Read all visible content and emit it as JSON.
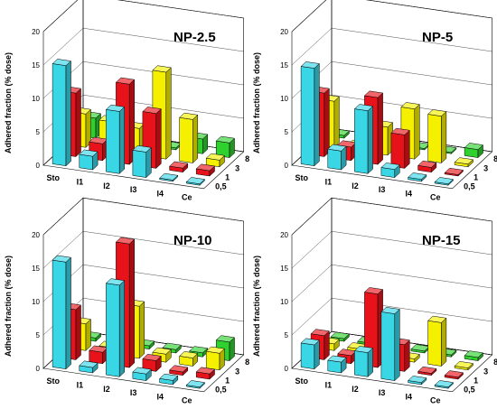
{
  "colors": {
    "0,5": "#39d6e6",
    "1": "#e8131a",
    "3": "#f4f000",
    "8": "#2fd12f"
  },
  "chart_data": [
    {
      "type": "bar3d",
      "title": "NP-2.5",
      "ylabel": "Adhered fraction (% dose)",
      "ylim": [
        0,
        20
      ],
      "yticks": [
        0,
        5,
        10,
        15,
        20
      ],
      "categories": [
        "Sto",
        "I1",
        "I2",
        "I3",
        "I4",
        "Ce"
      ],
      "depth_labels": [
        "0,5",
        "1",
        "3",
        "8"
      ],
      "series": [
        {
          "name": "0,5",
          "values": [
            15,
            2,
            9.3,
            3.8,
            0.2,
            0.2
          ]
        },
        {
          "name": "1",
          "values": [
            9.5,
            2.5,
            12,
            8.2,
            0.6,
            0.8
          ]
        },
        {
          "name": "3",
          "values": [
            5,
            4.4,
            4,
            13,
            6.5,
            1
          ]
        },
        {
          "name": "8",
          "values": [
            3,
            1,
            1.3,
            0.3,
            2.2,
            2.2
          ]
        }
      ]
    },
    {
      "type": "bar3d",
      "title": "NP-5",
      "ylabel": "Adhered fraction (% dose)",
      "ylim": [
        0,
        20
      ],
      "yticks": [
        0,
        5,
        10,
        15,
        20
      ],
      "categories": [
        "Sto",
        "I1",
        "I2",
        "I3",
        "I4",
        "Ce"
      ],
      "depth_labels": [
        "0,5",
        "1",
        "3",
        "8"
      ],
      "series": [
        {
          "name": "0,5",
          "values": [
            14.6,
            2.8,
            9.4,
            1.2,
            0.3,
            0.2
          ]
        },
        {
          "name": "1",
          "values": [
            9.5,
            2,
            10,
            5,
            0.7,
            0.2
          ]
        },
        {
          "name": "3",
          "values": [
            6.9,
            0.7,
            4.2,
            7.5,
            7,
            0.4
          ]
        },
        {
          "name": "8",
          "values": [
            0.4,
            0.3,
            0.4,
            0.2,
            0.2,
            1.2
          ]
        }
      ]
    },
    {
      "type": "bar3d",
      "title": "NP-10",
      "ylabel": "Adhered fraction (% dose)",
      "ylim": [
        0,
        20
      ],
      "yticks": [
        0,
        5,
        10,
        15,
        20
      ],
      "categories": [
        "Sto",
        "I1",
        "I2",
        "I3",
        "I4",
        "Ce"
      ],
      "depth_labels": [
        "0,5",
        "1",
        "3",
        "8"
      ],
      "series": [
        {
          "name": "0,5",
          "values": [
            16,
            0.8,
            13.7,
            1,
            0.6,
            0.2
          ]
        },
        {
          "name": "1",
          "values": [
            7.5,
            1.7,
            18.5,
            1.6,
            0.5,
            0.8
          ]
        },
        {
          "name": "3",
          "values": [
            4,
            1,
            7.8,
            1.2,
            1.2,
            2.5
          ]
        },
        {
          "name": "8",
          "values": [
            0.5,
            0.3,
            0.5,
            0.5,
            0.6,
            2.8
          ]
        }
      ]
    },
    {
      "type": "bar3d",
      "title": "NP-15",
      "ylabel": "Adhered fraction (% dose)",
      "ylim": [
        0,
        20
      ],
      "yticks": [
        0,
        5,
        10,
        15,
        20
      ],
      "categories": [
        "Sto",
        "I1",
        "I2",
        "I3",
        "I4",
        "Ce"
      ],
      "depth_labels": [
        "0,5",
        "1",
        "3",
        "8"
      ],
      "series": [
        {
          "name": "0,5",
          "values": [
            3.6,
            1.6,
            3.6,
            10,
            0.3,
            0.2
          ]
        },
        {
          "name": "1",
          "values": [
            3.6,
            1.2,
            11,
            4,
            0.3,
            0.3
          ]
        },
        {
          "name": "3",
          "values": [
            1,
            0.8,
            0.8,
            0.5,
            6.5,
            0.3
          ]
        },
        {
          "name": "8",
          "values": [
            0.4,
            0.3,
            0.4,
            0.3,
            0.3,
            0.5
          ]
        }
      ]
    }
  ]
}
